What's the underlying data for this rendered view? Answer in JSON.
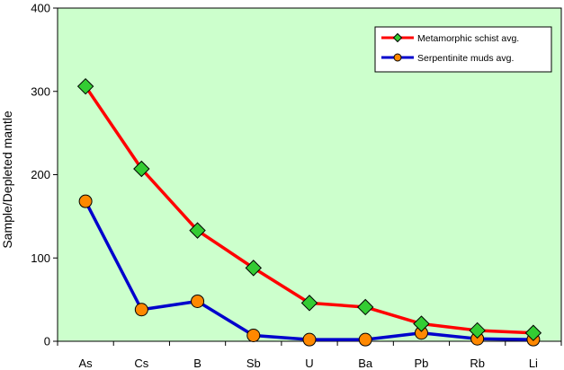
{
  "chart_data": {
    "type": "line",
    "title": "",
    "xlabel": "",
    "ylabel": "Sample/Depleted mantle",
    "categories": [
      "As",
      "Cs",
      "B",
      "Sb",
      "U",
      "Ba",
      "Pb",
      "Rb",
      "Li"
    ],
    "ylim": [
      0,
      400
    ],
    "yticks": [
      0,
      100,
      200,
      300,
      400
    ],
    "grid": false,
    "legend_position": "top-right",
    "plot_background": "#ccffcc",
    "series": [
      {
        "name": "Metamorphic schist avg.",
        "line_color": "#ff0000",
        "marker": "diamond",
        "marker_color": "#33cc33",
        "values": [
          306,
          207,
          133,
          88,
          46,
          41,
          21,
          13,
          10
        ]
      },
      {
        "name": "Serpentinite muds avg.",
        "line_color": "#0000cc",
        "marker": "circle",
        "marker_color": "#ff8800",
        "values": [
          168,
          38,
          48,
          7,
          2,
          2,
          10,
          3,
          2
        ]
      }
    ]
  }
}
